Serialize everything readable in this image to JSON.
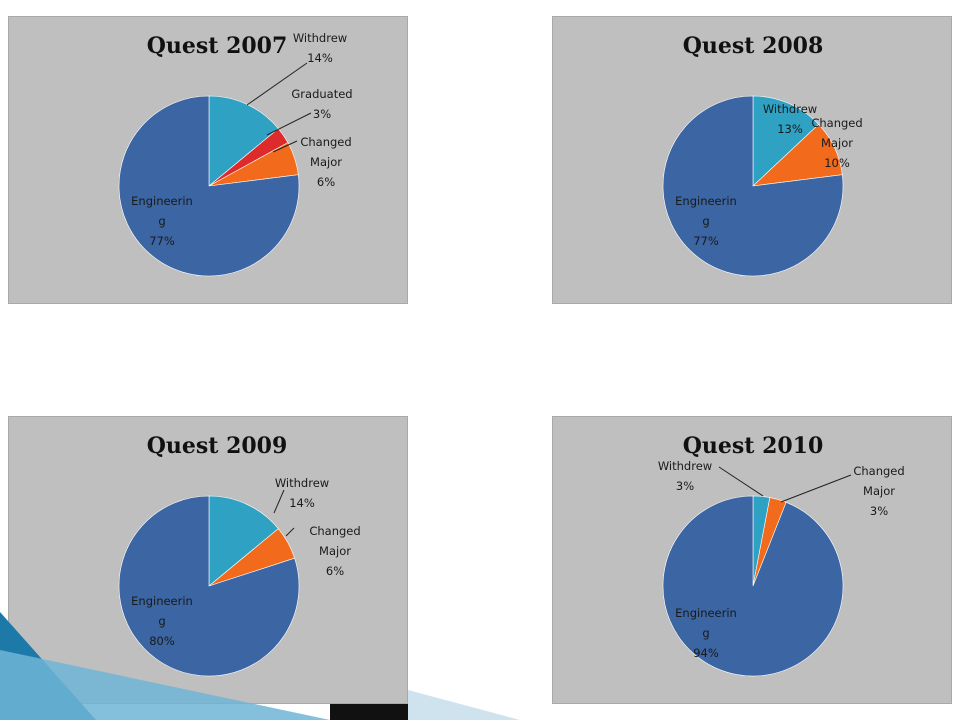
{
  "chart_data": [
    {
      "type": "pie",
      "title": "Quest 2007",
      "slices": [
        {
          "lines": [
            "Withdrew",
            "14%"
          ],
          "value": 14,
          "color": "#2fa2c4"
        },
        {
          "lines": [
            "Graduated",
            "3%"
          ],
          "value": 3,
          "color": "#dd2a2a"
        },
        {
          "lines": [
            "Changed",
            "Major",
            "6%"
          ],
          "value": 6,
          "color": "#f26b1d"
        },
        {
          "lines": [
            "Engineerin",
            "g",
            "77%"
          ],
          "value": 77,
          "color": "#3b65a3"
        }
      ]
    },
    {
      "type": "pie",
      "title": "Quest 2008",
      "slices": [
        {
          "lines": [
            "Withdrew",
            "13%"
          ],
          "value": 13,
          "color": "#2fa2c4"
        },
        {
          "lines": [
            "Changed",
            "Major",
            "10%"
          ],
          "value": 10,
          "color": "#f26b1d"
        },
        {
          "lines": [
            "Engineerin",
            "g",
            "77%"
          ],
          "value": 77,
          "color": "#3b65a3"
        }
      ]
    },
    {
      "type": "pie",
      "title": "Quest 2009",
      "slices": [
        {
          "lines": [
            "Withdrew",
            "14%"
          ],
          "value": 14,
          "color": "#2fa2c4"
        },
        {
          "lines": [
            "Changed",
            "Major",
            "6%"
          ],
          "value": 6,
          "color": "#f26b1d"
        },
        {
          "lines": [
            "Engineerin",
            "g",
            "80%"
          ],
          "value": 80,
          "color": "#3b65a3"
        }
      ]
    },
    {
      "type": "pie",
      "title": "Quest 2010",
      "slices": [
        {
          "lines": [
            "Withdrew",
            "3%"
          ],
          "value": 3,
          "color": "#2fa2c4"
        },
        {
          "lines": [
            "Changed",
            "Major",
            "3%"
          ],
          "value": 3,
          "color": "#f26b1d"
        },
        {
          "lines": [
            "Engineerin",
            "g",
            "94%"
          ],
          "value": 94,
          "color": "#3b65a3"
        }
      ]
    }
  ]
}
